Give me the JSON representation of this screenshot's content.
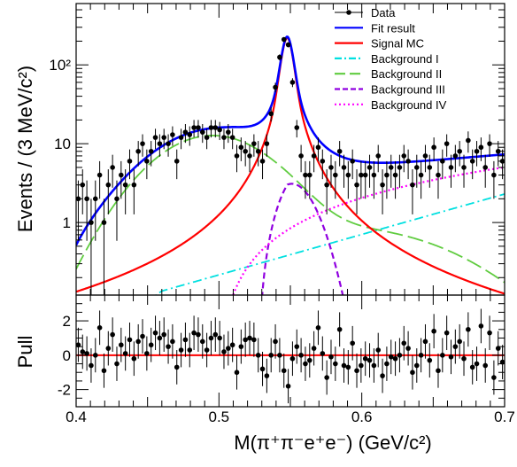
{
  "chart_data": [
    {
      "type": "scatter",
      "panel": "main",
      "ylabel": "Events / (3 MeV/c²)",
      "yscale": "log",
      "xlim": [
        0.4,
        0.7
      ],
      "ylim": [
        0.12,
        600
      ],
      "ytick_labels": [
        {
          "value": 1,
          "label": "1"
        },
        {
          "value": 10,
          "label": "10"
        },
        {
          "value": 100,
          "label": "10²"
        }
      ],
      "legend_position": "top-right",
      "legend": [
        {
          "name": "Data",
          "color": "#000000",
          "style": "marker"
        },
        {
          "name": "Fit result",
          "color": "#0000ff",
          "style": "solid"
        },
        {
          "name": "Signal MC",
          "color": "#ff0000",
          "style": "solid"
        },
        {
          "name": "Background I",
          "color": "#00e0e0",
          "style": "dashdot"
        },
        {
          "name": "Background II",
          "color": "#60cc40",
          "style": "longdash"
        },
        {
          "name": "Background III",
          "color": "#9000e0",
          "style": "dash"
        },
        {
          "name": "Background IV",
          "color": "#ff00ff",
          "style": "dot"
        }
      ],
      "series": [
        {
          "name": "Data",
          "x": [
            0.4015,
            0.4045,
            0.4075,
            0.4105,
            0.4135,
            0.4165,
            0.4195,
            0.4225,
            0.4255,
            0.4285,
            0.4315,
            0.4345,
            0.4375,
            0.4405,
            0.4435,
            0.4465,
            0.4495,
            0.4525,
            0.4555,
            0.4585,
            0.4615,
            0.4645,
            0.4675,
            0.4705,
            0.4735,
            0.4765,
            0.4795,
            0.4825,
            0.4855,
            0.4885,
            0.4915,
            0.4945,
            0.4975,
            0.5005,
            0.5035,
            0.5065,
            0.5095,
            0.5125,
            0.5155,
            0.5185,
            0.5215,
            0.5245,
            0.5275,
            0.5305,
            0.5335,
            0.5365,
            0.5395,
            0.5425,
            0.5455,
            0.5485,
            0.5515,
            0.5545,
            0.5575,
            0.5605,
            0.5635,
            0.5665,
            0.5695,
            0.5725,
            0.5755,
            0.5785,
            0.5815,
            0.5845,
            0.5875,
            0.5905,
            0.5935,
            0.5965,
            0.5995,
            0.6025,
            0.6055,
            0.6085,
            0.6115,
            0.6145,
            0.6175,
            0.6205,
            0.6235,
            0.6265,
            0.6295,
            0.6325,
            0.6355,
            0.6385,
            0.6415,
            0.6445,
            0.6475,
            0.6505,
            0.6535,
            0.6565,
            0.6595,
            0.6625,
            0.6655,
            0.6685,
            0.6715,
            0.6745,
            0.6775,
            0.6805,
            0.6835,
            0.6865,
            0.6895,
            0.6925,
            0.6955,
            0.6985
          ],
          "y": [
            2,
            3,
            2,
            1,
            2,
            4,
            1,
            3,
            5,
            2,
            4,
            3,
            6,
            3,
            8,
            10,
            6,
            8,
            12,
            10,
            12,
            10,
            13,
            6,
            12,
            14,
            13,
            16,
            16,
            14,
            12,
            16,
            16,
            15,
            12,
            14,
            12,
            7,
            9,
            8,
            7,
            10,
            8,
            6,
            10,
            24,
            52,
            125,
            210,
            180,
            60,
            16,
            7,
            4,
            4,
            7,
            9,
            6,
            3,
            5,
            4,
            8,
            5,
            4,
            6,
            3,
            4,
            4,
            5,
            4,
            7,
            3,
            4,
            5,
            4,
            5,
            7,
            6,
            3,
            5,
            4,
            7,
            5,
            9,
            4,
            6,
            10,
            5,
            7,
            8,
            5,
            11,
            6,
            8,
            9,
            5,
            10,
            4,
            8,
            6
          ],
          "pull": [
            0.6,
            0.2,
            0.1,
            -0.6,
            0.0,
            1.6,
            -0.9,
            0.4,
            1.2,
            -0.5,
            0.6,
            0.1,
            0.9,
            -0.2,
            0.8,
            1.1,
            0.1,
            0.6,
            1.3,
            1.0,
            1.2,
            0.5,
            0.8,
            -0.7,
            0.3,
            0.9,
            0.3,
            1.3,
            1.2,
            0.8,
            0.3,
            1.0,
            1.2,
            1.0,
            0.2,
            0.4,
            0.6,
            -1.0,
            0.5,
            0.9,
            1.0,
            0.9,
            0.0,
            -0.8,
            -1.2,
            0.0,
            0.8,
            0.0,
            -0.9,
            -1.8,
            -0.2,
            0.5,
            0.0,
            -0.5,
            -0.3,
            0.4,
            1.6,
            0.1,
            -1.3,
            -0.1,
            -0.5,
            1.5,
            -0.6,
            -0.7,
            0.7,
            -0.9,
            -0.6,
            -0.2,
            -0.3,
            -0.6,
            0.3,
            -1.2,
            -0.5,
            -0.1,
            -0.2,
            0.0,
            0.7,
            0.4,
            -1.0,
            -0.6,
            0.0,
            0.8,
            -0.3,
            1.4,
            -0.9,
            0.0,
            1.3,
            -0.1,
            0.5,
            0.8,
            -0.2,
            1.5,
            -0.7,
            -0.5,
            1.7,
            -0.6,
            1.3,
            -1.3,
            0.4,
            -0.4
          ]
        },
        {
          "name": "Fit result",
          "curve": "fit"
        },
        {
          "name": "Signal MC",
          "curve": "signal"
        },
        {
          "name": "Background I",
          "curve": "bkg1"
        },
        {
          "name": "Background II",
          "curve": "bkg2"
        },
        {
          "name": "Background III",
          "curve": "bkg3"
        },
        {
          "name": "Background IV",
          "curve": "bkg4"
        }
      ]
    },
    {
      "type": "scatter",
      "panel": "pull",
      "ylabel": "Pull",
      "xlabel": "M(π⁺π⁻e⁺e⁻) (GeV/c²)",
      "xlim": [
        0.4,
        0.7
      ],
      "ylim": [
        -3,
        3.5
      ],
      "ytick_labels": [
        {
          "value": 2,
          "label": "2"
        },
        {
          "value": 0,
          "label": "0"
        },
        {
          "value": -2,
          "label": "-2"
        }
      ],
      "xtick_labels": [
        {
          "value": 0.4,
          "label": "0.4"
        },
        {
          "value": 0.5,
          "label": "0.5"
        },
        {
          "value": 0.6,
          "label": "0.6"
        },
        {
          "value": 0.7,
          "label": "0.7"
        }
      ],
      "reference_line": {
        "y": 0,
        "color": "#ff0000"
      }
    }
  ]
}
